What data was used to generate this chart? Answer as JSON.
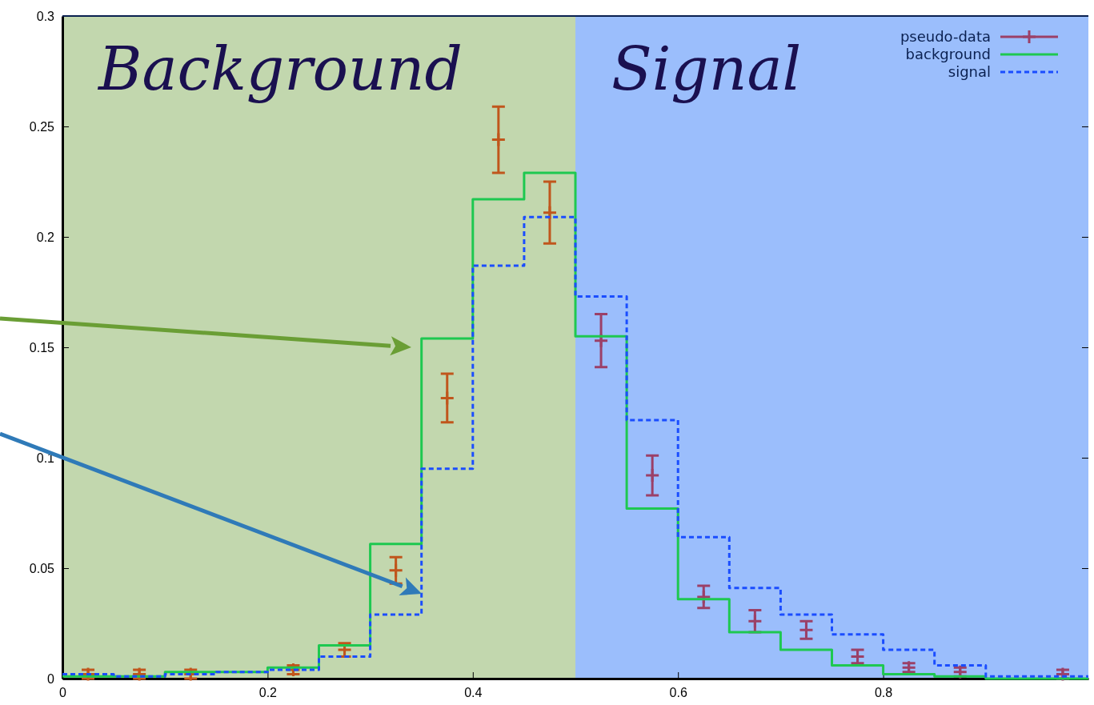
{
  "chart_data": {
    "type": "step",
    "xlim": [
      0,
      1
    ],
    "ylim": [
      0,
      0.3
    ],
    "xticks": [
      0,
      0.2,
      0.4,
      0.6,
      0.8
    ],
    "yticks": [
      0,
      0.05,
      0.1,
      0.15,
      0.2,
      0.25,
      0.3
    ],
    "grid": false,
    "legend": "top right",
    "bands": [
      {
        "axis": "x",
        "from": 0,
        "to": 0.5,
        "label": "Background",
        "color": "#c2d7ae"
      },
      {
        "axis": "x",
        "from": 0.5,
        "to": 1,
        "label": "Signal",
        "color": "#9bbefc"
      }
    ],
    "series": [
      {
        "name": "pseudo-data",
        "type": "scatter",
        "marker": "cross",
        "color": "#9b4068",
        "colors": [
          "#c0561c",
          "#c0561c",
          "#c0561c",
          "#c0561c",
          "#c0561c",
          "#c0561c",
          "#c0561c",
          "#c0561c",
          "#c0561c",
          "#9b4068",
          "#9b4068",
          "#9b4068",
          "#9b4068",
          "#9b4068",
          "#9b4068",
          "#9b4068",
          "#9b4068",
          "#9b4068"
        ],
        "x": [
          0.025,
          0.075,
          0.125,
          0.225,
          0.275,
          0.325,
          0.375,
          0.425,
          0.475,
          0.525,
          0.575,
          0.625,
          0.675,
          0.725,
          0.775,
          0.825,
          0.875,
          0.975
        ],
        "values": [
          0.002,
          0.002,
          0.002,
          0.004,
          0.013,
          0.049,
          0.127,
          0.244,
          0.211,
          0.153,
          0.092,
          0.037,
          0.026,
          0.022,
          0.01,
          0.005,
          0.003,
          0.002
        ],
        "errors": [
          0.002,
          0.002,
          0.002,
          0.002,
          0.003,
          0.006,
          0.011,
          0.015,
          0.014,
          0.012,
          0.009,
          0.005,
          0.005,
          0.004,
          0.003,
          0.002,
          0.002,
          0.002
        ]
      },
      {
        "name": "background",
        "line_style": "solid",
        "color": "#1ec850",
        "x": [
          0,
          0.05,
          0.1,
          0.15,
          0.2,
          0.25,
          0.3,
          0.35,
          0.4,
          0.45,
          0.5,
          0.55,
          0.6,
          0.65,
          0.7,
          0.75,
          0.8,
          0.85,
          0.9,
          0.95,
          1
        ],
        "values": [
          0.001,
          0.001,
          0.003,
          0.003,
          0.005,
          0.015,
          0.061,
          0.154,
          0.217,
          0.229,
          0.155,
          0.077,
          0.036,
          0.021,
          0.013,
          0.006,
          0.002,
          0.001,
          0,
          0,
          0
        ]
      },
      {
        "name": "signal",
        "line_style": "dashed",
        "color": "#1a4dff",
        "x": [
          0,
          0.05,
          0.1,
          0.15,
          0.2,
          0.25,
          0.3,
          0.35,
          0.4,
          0.45,
          0.5,
          0.55,
          0.6,
          0.65,
          0.7,
          0.75,
          0.8,
          0.85,
          0.9,
          0.95,
          1
        ],
        "values": [
          0.002,
          0.001,
          0.002,
          0.003,
          0.004,
          0.01,
          0.029,
          0.095,
          0.187,
          0.209,
          0.173,
          0.117,
          0.064,
          0.041,
          0.029,
          0.02,
          0.013,
          0.006,
          0.001,
          0.001,
          0.001
        ]
      }
    ]
  }
}
